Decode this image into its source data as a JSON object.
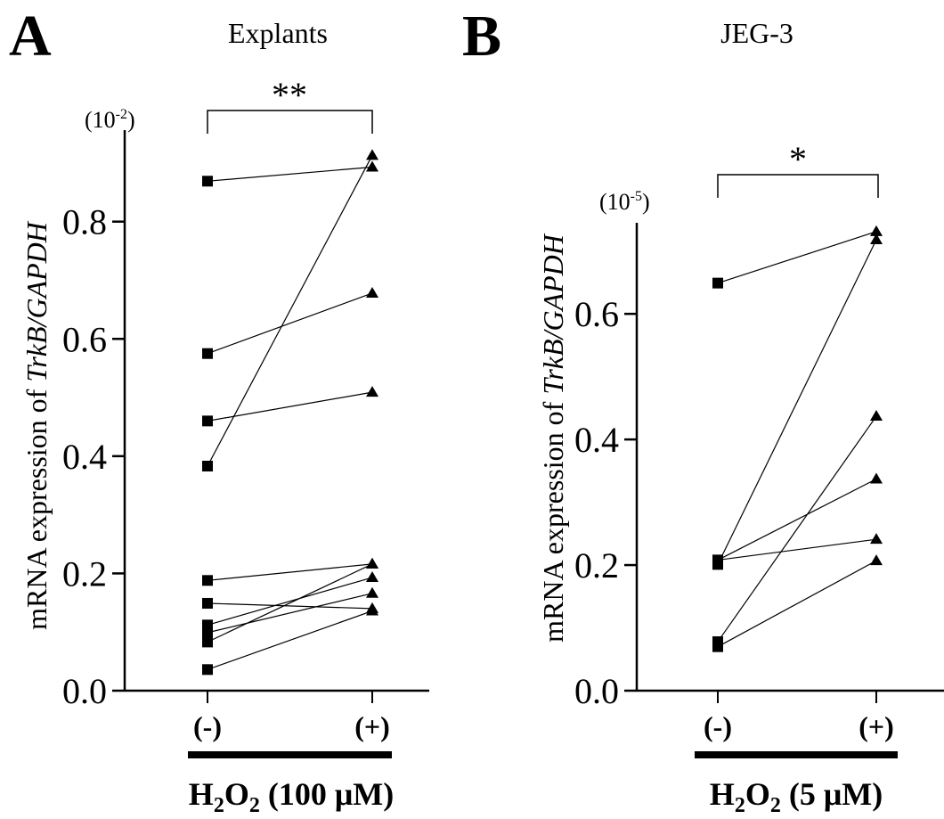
{
  "chart_data": [
    {
      "panel_letter": "A",
      "type": "scatter",
      "title": "Explants",
      "ylabel_prefix": "mRNA  expression of ",
      "ylabel_italic": "TrkB/GAPDH",
      "y_scale_label_base": "(10",
      "y_scale_label_exp": "-2",
      "y_scale_label_close": ")",
      "ylim": [
        0,
        0.95
      ],
      "yticks": [
        0.0,
        0.2,
        0.4,
        0.6,
        0.8
      ],
      "ytick_labels": [
        "0.0",
        "0.2",
        "0.4",
        "0.6",
        "0.8"
      ],
      "categories": [
        "(-)",
        "(+)"
      ],
      "significance": "**",
      "treatment": {
        "prefix": "H",
        "sub1": "2",
        "mid": "O",
        "sub2": "2",
        "suffix": " (100 μM)"
      },
      "pairs": [
        [
          0.869,
          0.893
        ],
        [
          0.575,
          0.678
        ],
        [
          0.46,
          0.509
        ],
        [
          0.383,
          0.913
        ],
        [
          0.188,
          0.216
        ],
        [
          0.149,
          0.14
        ],
        [
          0.112,
          0.193
        ],
        [
          0.099,
          0.166
        ],
        [
          0.083,
          0.216
        ],
        [
          0.036,
          0.136
        ]
      ]
    },
    {
      "panel_letter": "B",
      "type": "scatter",
      "title": "JEG-3",
      "ylabel_prefix": "mRNA  expression of ",
      "ylabel_italic": "TrkB/GAPDH",
      "y_scale_label_base": "(10",
      "y_scale_label_exp": "-5",
      "y_scale_label_close": ")",
      "ylim": [
        0,
        0.745
      ],
      "yticks": [
        0.0,
        0.2,
        0.4,
        0.6
      ],
      "ytick_labels": [
        "0.0",
        "0.2",
        "0.4",
        "0.6"
      ],
      "categories": [
        "(-)",
        "(+)"
      ],
      "significance": "*",
      "treatment": {
        "prefix": "H",
        "sub1": "2",
        "mid": "O",
        "sub2": "2",
        "suffix": " (5 μM)"
      },
      "pairs": [
        [
          0.649,
          0.731
        ],
        [
          0.208,
          0.337
        ],
        [
          0.208,
          0.241
        ],
        [
          0.201,
          0.718
        ],
        [
          0.078,
          0.437
        ],
        [
          0.07,
          0.207
        ]
      ]
    }
  ]
}
